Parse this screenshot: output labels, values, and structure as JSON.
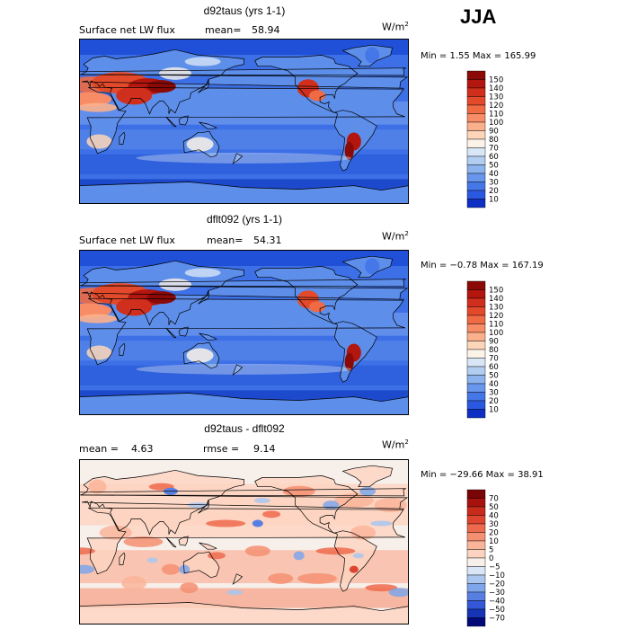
{
  "season": "JJA",
  "unit_base": "W/m",
  "unit_exp": "2",
  "panels": [
    {
      "title": "d92taus (yrs 1-1)",
      "field": "Surface net LW flux",
      "mean_label": "mean=",
      "mean": "58.94",
      "stats": "Min =    1.55 Max = 165.99",
      "colorbar": {
        "levels": [
          "150",
          "140",
          "130",
          "120",
          "110",
          "100",
          "90",
          "80",
          "70",
          "60",
          "50",
          "40",
          "30",
          "20",
          "10"
        ],
        "colors": [
          "#8b0a06",
          "#b2160e",
          "#cf2f1c",
          "#e34a2b",
          "#f06a44",
          "#f78c66",
          "#fbb08d",
          "#fdd5b9",
          "#fbf3e8",
          "#d8e6f6",
          "#b1cdf1",
          "#8cb3ee",
          "#6796ec",
          "#4677e8",
          "#2a58e0",
          "#0e2fc4"
        ]
      }
    },
    {
      "title": "dflt092 (yrs 1-1)",
      "field": "Surface net LW flux",
      "mean_label": "mean=",
      "mean": "54.31",
      "stats": "Min =  −0.78 Max = 167.19",
      "colorbar": {
        "levels": [
          "150",
          "140",
          "130",
          "120",
          "110",
          "100",
          "90",
          "80",
          "70",
          "60",
          "50",
          "40",
          "30",
          "20",
          "10"
        ],
        "colors": [
          "#8b0a06",
          "#b2160e",
          "#cf2f1c",
          "#e34a2b",
          "#f06a44",
          "#f78c66",
          "#fbb08d",
          "#fdd5b9",
          "#fbf3e8",
          "#d8e6f6",
          "#b1cdf1",
          "#8cb3ee",
          "#6796ec",
          "#4677e8",
          "#2a58e0",
          "#0e2fc4"
        ]
      }
    },
    {
      "title": "d92taus - dflt092",
      "mean_label": "mean =",
      "mean": "4.63",
      "rmse_label": "rmse =",
      "rmse": "9.14",
      "stats": "Min = −29.66 Max =  38.91",
      "colorbar": {
        "levels": [
          "70",
          "50",
          "40",
          "30",
          "20",
          "10",
          "5",
          "0",
          "−5",
          "−10",
          "−20",
          "−30",
          "−40",
          "−50",
          "−70"
        ],
        "colors": [
          "#7a0506",
          "#a8120e",
          "#c82a1c",
          "#de4530",
          "#ee6a4c",
          "#f58f72",
          "#fab49a",
          "#fcd3c0",
          "#f7efe9",
          "#d9e6f6",
          "#a9c6ef",
          "#7fa6ea",
          "#577fe2",
          "#3357d6",
          "#1534b6",
          "#020a7a"
        ]
      }
    }
  ]
}
